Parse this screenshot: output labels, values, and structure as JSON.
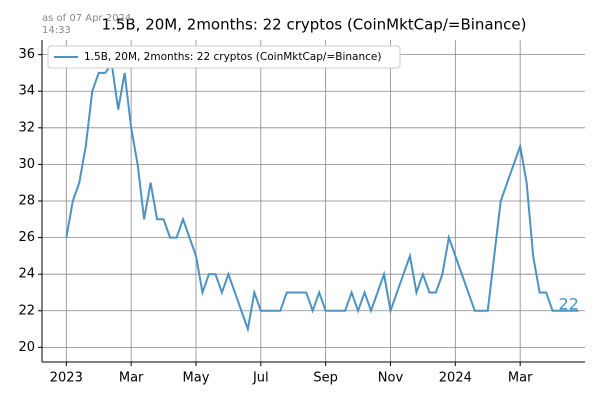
{
  "chart_data": {
    "type": "line",
    "title": "1.5B, 20M, 2months: 22 cryptos (CoinMktCap/=Binance)",
    "note": [
      "as of 07 Apr 2024",
      "14:33"
    ],
    "end_label": "22",
    "x": [
      0,
      0.2,
      0.4,
      0.6,
      0.8,
      1.0,
      1.2,
      1.4,
      1.6,
      1.8,
      2.0,
      2.2,
      2.4,
      2.6,
      2.8,
      3.0,
      3.2,
      3.4,
      3.6,
      3.8,
      4.0,
      4.2,
      4.4,
      4.6,
      4.8,
      5.0,
      5.2,
      5.4,
      5.6,
      5.8,
      6.0,
      6.2,
      6.4,
      6.6,
      6.8,
      7.0,
      7.2,
      7.4,
      7.6,
      7.8,
      8.0,
      8.2,
      8.4,
      8.6,
      8.8,
      9.0,
      9.2,
      9.4,
      9.6,
      9.8,
      10.0,
      10.2,
      10.4,
      10.6,
      10.8,
      11.0,
      11.2,
      11.4,
      11.6,
      11.8,
      12.0,
      12.2,
      12.4,
      12.6,
      12.8,
      13.0,
      13.2,
      13.4,
      13.6,
      13.8,
      14.0,
      14.2,
      14.4,
      14.6,
      14.8,
      15.0,
      15.2,
      15.4,
      15.6,
      15.8
    ],
    "series": [
      {
        "name": "1.5B, 20M, 2months: 22 cryptos (CoinMktCap/=Binance)",
        "color": "#4c92c3",
        "values": [
          26,
          28,
          29,
          31,
          34,
          35,
          35,
          35.5,
          33,
          35,
          32,
          30,
          27,
          29,
          27,
          27,
          26,
          26,
          27,
          26,
          25,
          23,
          24,
          24,
          23,
          24,
          23,
          22,
          21,
          23,
          22,
          22,
          22,
          22,
          23,
          23,
          23,
          23,
          22,
          23,
          22,
          22,
          22,
          22,
          23,
          22,
          23,
          22,
          23,
          24,
          22,
          23,
          24,
          25,
          23,
          24,
          23,
          23,
          24,
          26,
          25,
          24,
          23,
          22,
          22,
          22,
          25,
          28,
          29,
          30,
          31,
          29,
          25,
          23,
          23,
          22,
          22,
          22,
          22,
          22
        ]
      }
    ],
    "xlim": [
      -0.75,
      16
    ],
    "xticks": [
      {
        "value": 0,
        "label": "2023"
      },
      {
        "value": 2,
        "label": "Mar"
      },
      {
        "value": 4,
        "label": "May"
      },
      {
        "value": 6,
        "label": "Jul"
      },
      {
        "value": 8,
        "label": "Sep"
      },
      {
        "value": 10,
        "label": "Nov"
      },
      {
        "value": 12,
        "label": "2024"
      },
      {
        "value": 14,
        "label": "Mar"
      }
    ],
    "ylim": [
      19.2,
      36.8
    ],
    "yticks": [
      20,
      22,
      24,
      26,
      28,
      30,
      32,
      34,
      36
    ],
    "grid": true,
    "legend": "upper left"
  }
}
